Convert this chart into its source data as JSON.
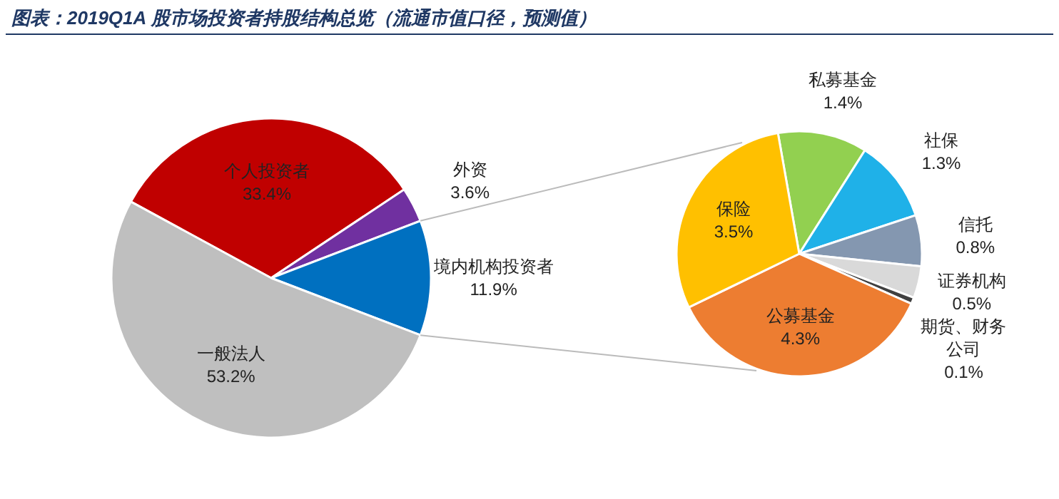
{
  "chart_data": [
    {
      "type": "pie",
      "title": "图表：2019Q1A 股市场投资者持股结构总览（流通市值口径，预测值）",
      "categories": [
        "个人投资者",
        "外资",
        "境内机构投资者",
        "一般法人"
      ],
      "values": [
        33.4,
        3.6,
        11.9,
        53.2
      ],
      "value_labels": [
        "33.4%",
        "3.6%",
        "11.9%",
        "53.2%"
      ],
      "colors": [
        "#c00000",
        "#7030a0",
        "#0070c0",
        "#bfbfbf"
      ]
    },
    {
      "type": "pie",
      "categories": [
        "私募基金",
        "社保",
        "信托",
        "证券机构",
        "期货、财务公司",
        "公募基金",
        "保险"
      ],
      "values": [
        1.4,
        1.3,
        0.8,
        0.5,
        0.1,
        4.3,
        3.5
      ],
      "value_labels": [
        "1.4%",
        "1.3%",
        "0.8%",
        "0.5%",
        "0.1%",
        "4.3%",
        "3.5%"
      ],
      "colors": [
        "#92d050",
        "#1fb1e8",
        "#8497b0",
        "#d9d9d9",
        "#404040",
        "#ed7d31",
        "#ffc000"
      ]
    }
  ]
}
